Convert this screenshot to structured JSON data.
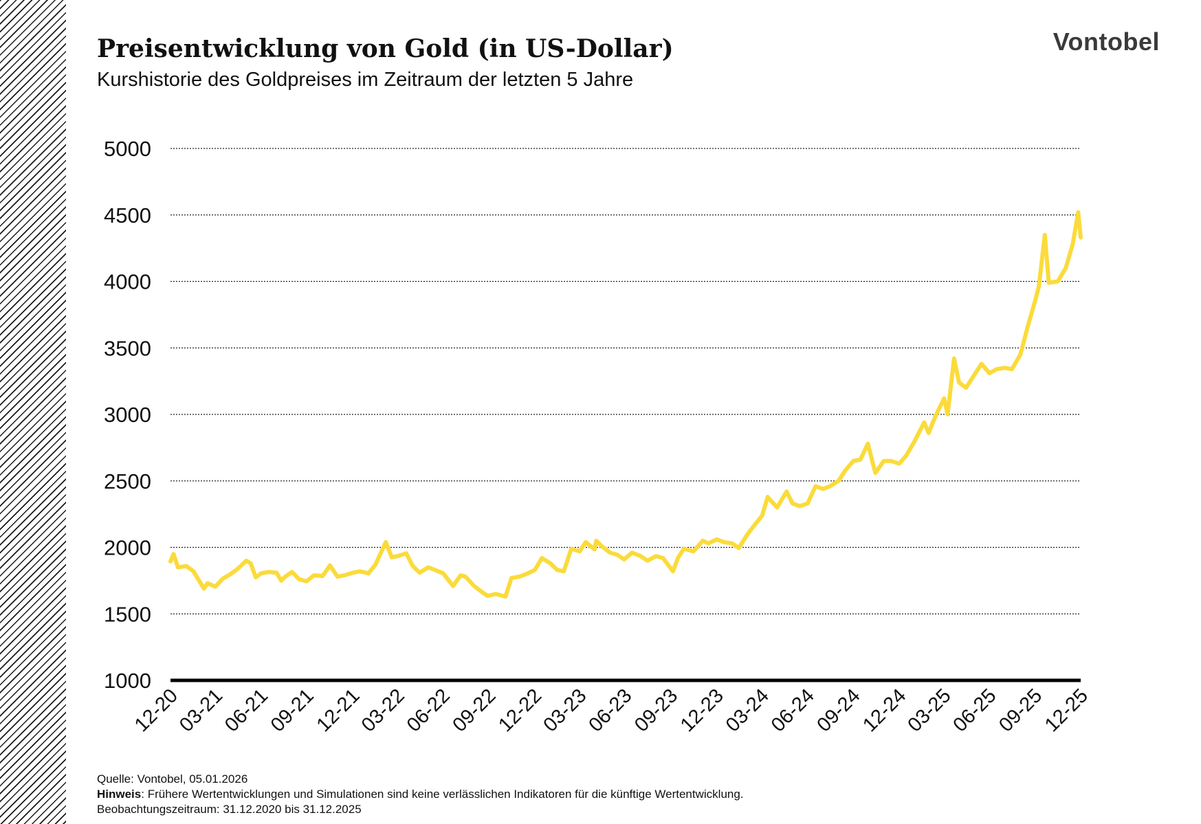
{
  "header": {
    "title": "Preisentwicklung von Gold (in US-Dollar)",
    "subtitle": "Kurshistorie des Goldpreises im Zeitraum der letzten 5 Jahre",
    "brand": "Vontobel"
  },
  "footer": {
    "source": "Quelle: Vontobel, 05.01.2026",
    "note_label": "Hinweis",
    "note_text": ": Frühere Wertentwicklungen und Simulationen sind keine verlässlichen Indikatoren für die künftige Wertentwicklung.",
    "period": "Beobachtungszeitraum: 31.12.2020 bis 31.12.2025"
  },
  "colors": {
    "line": "#FBDB3B",
    "text": "#111111",
    "grid": "#222222",
    "brand": "#3a3a3a"
  },
  "chart_data": {
    "type": "line",
    "title": "Preisentwicklung von Gold (in US-Dollar)",
    "subtitle": "Kurshistorie des Goldpreises im Zeitraum der letzten 5 Jahre",
    "xlabel": "",
    "ylabel": "",
    "ylim": [
      1000,
      5000
    ],
    "yticks": [
      1000,
      1500,
      2000,
      2500,
      3000,
      3500,
      4000,
      4500,
      5000
    ],
    "xlim": [
      "2020-12-31",
      "2025-12-31"
    ],
    "xticks": [
      {
        "label": "12-20",
        "date": "2020-12-31"
      },
      {
        "label": "03-21",
        "date": "2021-03-31"
      },
      {
        "label": "06-21",
        "date": "2021-06-30"
      },
      {
        "label": "09-21",
        "date": "2021-09-30"
      },
      {
        "label": "12-21",
        "date": "2021-12-31"
      },
      {
        "label": "03-22",
        "date": "2022-03-31"
      },
      {
        "label": "06-22",
        "date": "2022-06-30"
      },
      {
        "label": "09-22",
        "date": "2022-09-30"
      },
      {
        "label": "12-22",
        "date": "2022-12-31"
      },
      {
        "label": "03-23",
        "date": "2023-03-31"
      },
      {
        "label": "06-23",
        "date": "2023-06-30"
      },
      {
        "label": "09-23",
        "date": "2023-09-30"
      },
      {
        "label": "12-23",
        "date": "2023-12-31"
      },
      {
        "label": "03-24",
        "date": "2024-03-31"
      },
      {
        "label": "06-24",
        "date": "2024-06-30"
      },
      {
        "label": "09-24",
        "date": "2024-09-30"
      },
      {
        "label": "12-24",
        "date": "2024-12-31"
      },
      {
        "label": "03-25",
        "date": "2025-03-31"
      },
      {
        "label": "06-25",
        "date": "2025-06-30"
      },
      {
        "label": "09-25",
        "date": "2025-09-30"
      },
      {
        "label": "12-25",
        "date": "2025-12-31"
      }
    ],
    "grid": true,
    "legend": "none",
    "series": [
      {
        "name": "",
        "x": [
          "2020-12-31",
          "2021-01-06",
          "2021-01-15",
          "2021-02-01",
          "2021-02-15",
          "2021-03-08",
          "2021-03-15",
          "2021-03-31",
          "2021-04-15",
          "2021-05-01",
          "2021-05-15",
          "2021-06-01",
          "2021-06-10",
          "2021-06-20",
          "2021-07-01",
          "2021-07-15",
          "2021-08-01",
          "2021-08-10",
          "2021-08-20",
          "2021-09-01",
          "2021-09-15",
          "2021-09-30",
          "2021-10-15",
          "2021-11-01",
          "2021-11-16",
          "2021-12-01",
          "2021-12-15",
          "2022-01-01",
          "2022-01-15",
          "2022-02-01",
          "2022-02-15",
          "2022-03-08",
          "2022-03-20",
          "2022-04-01",
          "2022-04-18",
          "2022-05-01",
          "2022-05-15",
          "2022-06-01",
          "2022-06-15",
          "2022-07-01",
          "2022-07-21",
          "2022-08-05",
          "2022-08-15",
          "2022-09-01",
          "2022-09-15",
          "2022-09-28",
          "2022-10-15",
          "2022-11-03",
          "2022-11-15",
          "2022-12-01",
          "2022-12-15",
          "2023-01-01",
          "2023-01-15",
          "2023-02-01",
          "2023-02-15",
          "2023-02-28",
          "2023-03-15",
          "2023-04-01",
          "2023-04-13",
          "2023-05-01",
          "2023-05-04",
          "2023-05-15",
          "2023-06-01",
          "2023-06-15",
          "2023-06-29",
          "2023-07-15",
          "2023-08-01",
          "2023-08-15",
          "2023-09-01",
          "2023-09-15",
          "2023-10-05",
          "2023-10-15",
          "2023-10-27",
          "2023-11-15",
          "2023-12-04",
          "2023-12-15",
          "2024-01-01",
          "2024-01-15",
          "2024-02-01",
          "2024-02-14",
          "2024-03-01",
          "2024-03-15",
          "2024-04-01",
          "2024-04-12",
          "2024-05-01",
          "2024-05-20",
          "2024-06-01",
          "2024-06-15",
          "2024-07-01",
          "2024-07-17",
          "2024-08-01",
          "2024-08-15",
          "2024-09-01",
          "2024-09-15",
          "2024-10-01",
          "2024-10-15",
          "2024-10-30",
          "2024-11-14",
          "2024-12-01",
          "2024-12-15",
          "2025-01-01",
          "2025-01-15",
          "2025-02-01",
          "2025-02-20",
          "2025-03-01",
          "2025-03-15",
          "2025-04-01",
          "2025-04-08",
          "2025-04-21",
          "2025-05-01",
          "2025-05-15",
          "2025-06-01",
          "2025-06-15",
          "2025-07-01",
          "2025-07-15",
          "2025-08-01",
          "2025-08-15",
          "2025-09-01",
          "2025-09-15",
          "2025-10-01",
          "2025-10-08",
          "2025-10-20",
          "2025-10-28",
          "2025-11-15",
          "2025-12-01",
          "2025-12-15",
          "2025-12-26",
          "2025-12-31"
        ],
        "y": [
          1895,
          1950,
          1850,
          1860,
          1820,
          1690,
          1730,
          1705,
          1765,
          1800,
          1840,
          1900,
          1880,
          1775,
          1805,
          1815,
          1810,
          1750,
          1785,
          1815,
          1760,
          1745,
          1790,
          1785,
          1865,
          1780,
          1790,
          1810,
          1820,
          1805,
          1870,
          2040,
          1925,
          1935,
          1955,
          1860,
          1810,
          1850,
          1830,
          1805,
          1710,
          1790,
          1780,
          1710,
          1670,
          1635,
          1650,
          1630,
          1770,
          1780,
          1800,
          1830,
          1920,
          1880,
          1830,
          1820,
          1990,
          1970,
          2040,
          1985,
          2050,
          2010,
          1960,
          1945,
          1910,
          1960,
          1935,
          1900,
          1935,
          1920,
          1820,
          1920,
          1990,
          1970,
          2050,
          2030,
          2060,
          2040,
          2030,
          1995,
          2090,
          2160,
          2240,
          2380,
          2300,
          2420,
          2330,
          2310,
          2330,
          2460,
          2440,
          2460,
          2500,
          2580,
          2650,
          2660,
          2780,
          2560,
          2650,
          2650,
          2630,
          2690,
          2800,
          2940,
          2860,
          2990,
          3120,
          3000,
          3420,
          3240,
          3200,
          3300,
          3380,
          3310,
          3340,
          3350,
          3340,
          3450,
          3650,
          3860,
          3960,
          4350,
          3990,
          4000,
          4100,
          4280,
          4520,
          4330
        ]
      }
    ]
  }
}
